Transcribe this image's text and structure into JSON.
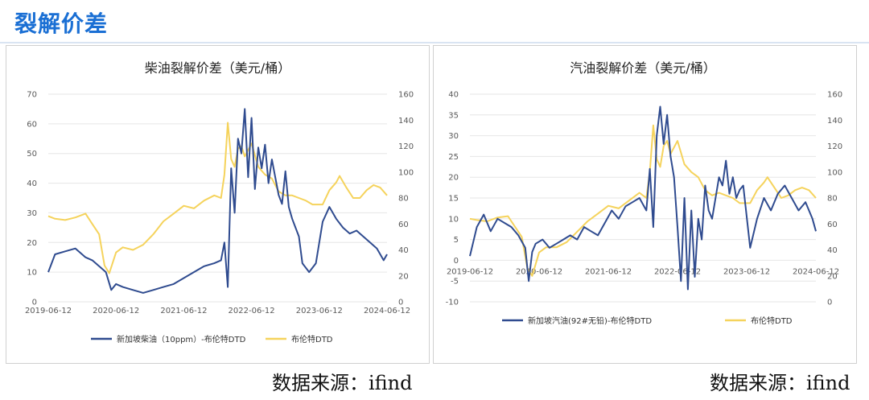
{
  "page": {
    "title": "裂解价差",
    "source_left": "数据来源：ifind",
    "source_right": "数据来源：ifind"
  },
  "colors": {
    "title_blue": "#1a6fd4",
    "series_blue": "#2f4b8f",
    "series_yellow": "#f5d35c"
  },
  "chart_data": [
    {
      "type": "line",
      "title": "柴油裂解价差（美元/桶）",
      "x_labels": [
        "2019-06-12",
        "2020-06-12",
        "2021-06-12",
        "2022-06-12",
        "2023-06-12",
        "2024-06-12"
      ],
      "ylim_left": [
        0,
        70
      ],
      "yticks_left": [
        "0",
        "10",
        "20",
        "30",
        "40",
        "50",
        "60",
        "70"
      ],
      "ylim_right": [
        0,
        160
      ],
      "yticks_right": [
        "0",
        "20",
        "40",
        "60",
        "80",
        "100",
        "120",
        "140",
        "160"
      ],
      "grid": true,
      "legend_position": "bottom",
      "series": [
        {
          "name": "新加坡柴油（10ppm）-布伦特DTD",
          "axis": "left",
          "x": [
            2019.45,
            2019.55,
            2019.7,
            2019.85,
            2020.0,
            2020.1,
            2020.2,
            2020.3,
            2020.38,
            2020.45,
            2020.55,
            2020.7,
            2020.85,
            2021.0,
            2021.15,
            2021.3,
            2021.45,
            2021.6,
            2021.75,
            2021.9,
            2022.0,
            2022.05,
            2022.1,
            2022.15,
            2022.2,
            2022.25,
            2022.3,
            2022.35,
            2022.4,
            2022.45,
            2022.5,
            2022.55,
            2022.6,
            2022.65,
            2022.7,
            2022.75,
            2022.8,
            2022.85,
            2022.9,
            2022.95,
            2023.0,
            2023.05,
            2023.1,
            2023.15,
            2023.2,
            2023.3,
            2023.4,
            2023.5,
            2023.6,
            2023.7,
            2023.8,
            2023.9,
            2024.0,
            2024.1,
            2024.2,
            2024.3,
            2024.4,
            2024.45
          ],
          "values": [
            10,
            16,
            17,
            18,
            15,
            14,
            12,
            10,
            4,
            6,
            5,
            4,
            3,
            4,
            5,
            6,
            8,
            10,
            12,
            13,
            14,
            20,
            5,
            45,
            30,
            55,
            50,
            65,
            42,
            62,
            38,
            52,
            45,
            53,
            40,
            48,
            42,
            36,
            33,
            44,
            32,
            28,
            25,
            22,
            13,
            10,
            13,
            27,
            32,
            28,
            25,
            23,
            24,
            22,
            20,
            18,
            14,
            16
          ]
        },
        {
          "name": "布伦特DTD",
          "axis": "right",
          "x": [
            2019.45,
            2019.55,
            2019.7,
            2019.85,
            2020.0,
            2020.1,
            2020.2,
            2020.28,
            2020.35,
            2020.45,
            2020.55,
            2020.7,
            2020.85,
            2021.0,
            2021.15,
            2021.3,
            2021.45,
            2021.6,
            2021.75,
            2021.9,
            2022.0,
            2022.05,
            2022.1,
            2022.15,
            2022.2,
            2022.25,
            2022.3,
            2022.35,
            2022.45,
            2022.55,
            2022.65,
            2022.75,
            2022.85,
            2022.95,
            2023.05,
            2023.15,
            2023.25,
            2023.35,
            2023.5,
            2023.6,
            2023.7,
            2023.75,
            2023.85,
            2023.95,
            2024.05,
            2024.15,
            2024.25,
            2024.35,
            2024.45
          ],
          "values": [
            66,
            64,
            63,
            65,
            68,
            60,
            52,
            28,
            22,
            38,
            42,
            40,
            44,
            52,
            62,
            68,
            74,
            72,
            78,
            82,
            80,
            98,
            138,
            110,
            104,
            118,
            120,
            112,
            122,
            104,
            98,
            95,
            85,
            82,
            82,
            80,
            78,
            75,
            75,
            86,
            92,
            97,
            88,
            80,
            80,
            86,
            90,
            88,
            82
          ]
        }
      ]
    },
    {
      "type": "line",
      "title": "汽油裂解价差（美元/桶）",
      "x_labels": [
        "2019-06-12",
        "2020-06-12",
        "2021-06-12",
        "2022-06-12",
        "2023-06-12",
        "2024-06-12"
      ],
      "ylim_left": [
        -10,
        40
      ],
      "yticks_left": [
        "-10",
        "-5",
        "0",
        "5",
        "10",
        "15",
        "20",
        "25",
        "30",
        "35",
        "40"
      ],
      "ylim_right": [
        0,
        160
      ],
      "yticks_right": [
        "0",
        "20",
        "40",
        "60",
        "80",
        "100",
        "120",
        "140",
        "160"
      ],
      "grid": true,
      "legend_position": "bottom",
      "series": [
        {
          "name": "新加坡汽油(92#无铅)-布伦特DTD",
          "axis": "left",
          "x": [
            2019.45,
            2019.55,
            2019.65,
            2019.75,
            2019.85,
            2019.95,
            2020.05,
            2020.15,
            2020.25,
            2020.3,
            2020.35,
            2020.4,
            2020.5,
            2020.6,
            2020.7,
            2020.8,
            2020.9,
            2021.0,
            2021.1,
            2021.2,
            2021.3,
            2021.4,
            2021.5,
            2021.6,
            2021.7,
            2021.8,
            2021.9,
            2022.0,
            2022.05,
            2022.1,
            2022.15,
            2022.2,
            2022.25,
            2022.3,
            2022.35,
            2022.4,
            2022.45,
            2022.5,
            2022.55,
            2022.6,
            2022.65,
            2022.7,
            2022.75,
            2022.8,
            2022.85,
            2022.9,
            2022.95,
            2023.0,
            2023.05,
            2023.1,
            2023.15,
            2023.2,
            2023.25,
            2023.3,
            2023.35,
            2023.4,
            2023.5,
            2023.6,
            2023.7,
            2023.8,
            2023.9,
            2024.0,
            2024.1,
            2024.2,
            2024.3,
            2024.4,
            2024.45
          ],
          "values": [
            1,
            8,
            11,
            7,
            10,
            9,
            8,
            6,
            3,
            -5,
            2,
            4,
            5,
            3,
            4,
            5,
            6,
            5,
            8,
            7,
            6,
            9,
            12,
            10,
            13,
            14,
            15,
            12,
            22,
            8,
            30,
            37,
            28,
            35,
            25,
            20,
            8,
            -5,
            15,
            -7,
            12,
            -4,
            10,
            5,
            18,
            12,
            10,
            15,
            20,
            18,
            24,
            16,
            20,
            15,
            17,
            18,
            3,
            10,
            15,
            12,
            16,
            18,
            15,
            12,
            14,
            10,
            7
          ]
        },
        {
          "name": "布伦特DTD",
          "axis": "right",
          "x": [
            2019.45,
            2019.55,
            2019.7,
            2019.85,
            2020.0,
            2020.1,
            2020.2,
            2020.28,
            2020.35,
            2020.45,
            2020.55,
            2020.7,
            2020.85,
            2021.0,
            2021.15,
            2021.3,
            2021.45,
            2021.6,
            2021.75,
            2021.9,
            2022.0,
            2022.05,
            2022.1,
            2022.15,
            2022.2,
            2022.25,
            2022.3,
            2022.35,
            2022.45,
            2022.55,
            2022.65,
            2022.75,
            2022.85,
            2022.95,
            2023.05,
            2023.15,
            2023.25,
            2023.35,
            2023.5,
            2023.6,
            2023.7,
            2023.75,
            2023.85,
            2023.95,
            2024.05,
            2024.15,
            2024.25,
            2024.35,
            2024.45
          ],
          "values": [
            64,
            63,
            62,
            65,
            66,
            58,
            50,
            26,
            20,
            38,
            42,
            42,
            46,
            54,
            62,
            68,
            74,
            72,
            78,
            84,
            80,
            100,
            136,
            110,
            104,
            120,
            124,
            114,
            124,
            106,
            100,
            96,
            86,
            82,
            84,
            82,
            80,
            76,
            76,
            86,
            92,
            96,
            88,
            80,
            82,
            86,
            88,
            86,
            80
          ]
        }
      ]
    }
  ]
}
